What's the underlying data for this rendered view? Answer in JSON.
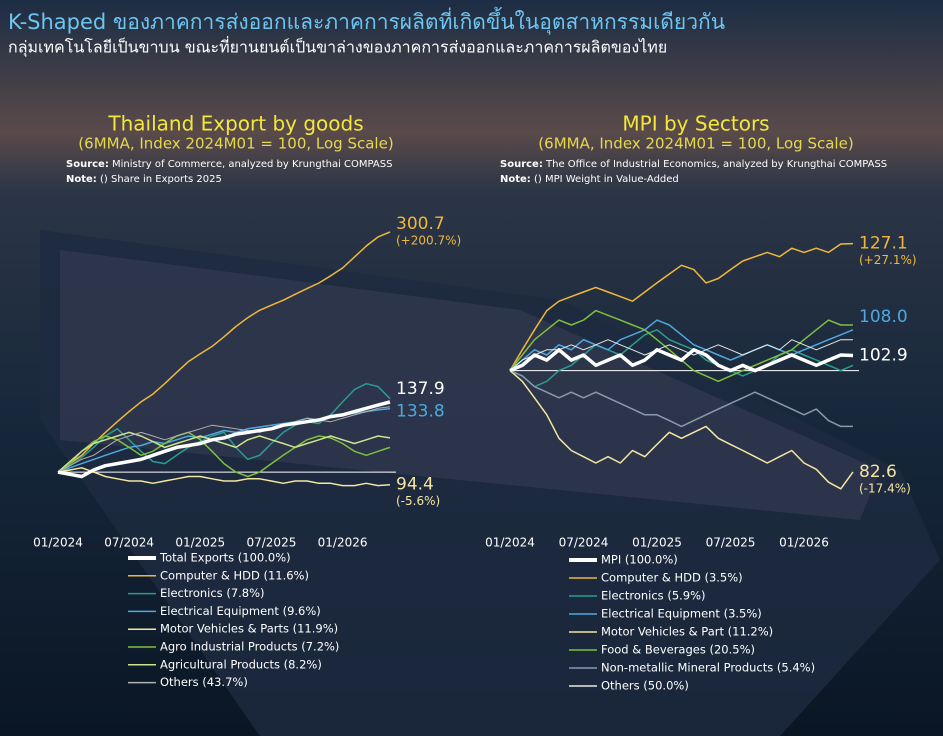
{
  "header": {
    "title": "K-Shaped ของภาคการส่งออกและภาคการผลิตที่เกิดขึ้นในอุตสาหกรรมเดียวกัน",
    "subtitle": "กลุ่มเทคโนโลยีเป็นขาบน ขณะที่ยานยนต์เป็นขาล่างของภาคการส่งออกและภาคการผลิตของไทย"
  },
  "chart_data": [
    {
      "type": "line",
      "title": "Thailand Export by goods",
      "subtitle": "(6MMA, Index 2024M01 = 100, Log Scale)",
      "source_label": "Source:",
      "source": " Ministry of Commerce, analyzed by Krungthai COMPASS",
      "note_label": "Note:",
      "note": " () Share in Exports 2025",
      "log_scale": true,
      "baseline": 100,
      "ylim": [
        88,
        440
      ],
      "categories": [
        "01/2024",
        null,
        null,
        null,
        null,
        null,
        "07/2024",
        null,
        null,
        null,
        null,
        null,
        "01/2025",
        null,
        null,
        null,
        null,
        null,
        "07/2025",
        null,
        null,
        null,
        null,
        null,
        "01/2026",
        null,
        null,
        null,
        null
      ],
      "series": [
        {
          "name": "Total Exports (100.0%)",
          "color": "#ffffff",
          "values": [
            100,
            99,
            98,
            101,
            103,
            104,
            105,
            106,
            108,
            110,
            112,
            113,
            114,
            116,
            117,
            119,
            120,
            121,
            122,
            124,
            125,
            126,
            127,
            129,
            130,
            132,
            134,
            136,
            137.9
          ],
          "end_labels": [
            "137.9"
          ]
        },
        {
          "name": "Computer & HDD (11.6%)",
          "color": "#f0b83a",
          "values": [
            100,
            104,
            108,
            114,
            120,
            126,
            132,
            138,
            143,
            150,
            158,
            166,
            172,
            178,
            186,
            195,
            203,
            210,
            215,
            220,
            226,
            232,
            238,
            246,
            255,
            268,
            282,
            294,
            300.7
          ],
          "end_labels": [
            "300.7",
            "(+200.7%)"
          ]
        },
        {
          "name": "Electronics (7.8%)",
          "color": "#2a9d8f",
          "values": [
            100,
            103,
            107,
            112,
            118,
            122,
            116,
            110,
            105,
            104,
            108,
            112,
            115,
            118,
            120,
            112,
            106,
            108,
            114,
            120,
            124,
            126,
            125,
            130,
            138,
            146,
            150,
            148,
            140
          ]
        },
        {
          "name": "Electrical Equipment (9.6%)",
          "color": "#4ea8de",
          "values": [
            100,
            102,
            104,
            106,
            108,
            110,
            112,
            113,
            115,
            114,
            116,
            118,
            117,
            119,
            121,
            120,
            122,
            123,
            124,
            125,
            126,
            128,
            127,
            129,
            130,
            131,
            132,
            133,
            133.8
          ],
          "end_labels": [
            "133.8"
          ]
        },
        {
          "name": "Motor Vehicles & Parts (11.9%)",
          "color": "#f5e6a0",
          "values": [
            100,
            101,
            102,
            100,
            98,
            97,
            96,
            96,
            95,
            96,
            97,
            98,
            98,
            97,
            96,
            96,
            97,
            97,
            96,
            95,
            96,
            96,
            95,
            95,
            94,
            94,
            95,
            94,
            94.4
          ],
          "end_labels": [
            "94.4",
            "(-5.6%)"
          ]
        },
        {
          "name": "Agro Industrial Products (7.2%)",
          "color": "#7fbf3f",
          "values": [
            100,
            104,
            110,
            115,
            118,
            116,
            112,
            108,
            110,
            114,
            118,
            120,
            116,
            110,
            104,
            100,
            98,
            100,
            104,
            108,
            112,
            116,
            118,
            117,
            114,
            110,
            108,
            110,
            112
          ]
        },
        {
          "name": "Agricultural Products (8.2%)",
          "color": "#cde38f",
          "values": [
            100,
            105,
            110,
            114,
            116,
            118,
            120,
            118,
            115,
            112,
            114,
            116,
            118,
            116,
            114,
            112,
            116,
            118,
            116,
            114,
            112,
            114,
            116,
            118,
            116,
            114,
            116,
            118,
            117
          ]
        },
        {
          "name": "Others (43.7%)",
          "color": "#b0b0b0",
          "values": [
            100,
            103,
            106,
            108,
            112,
            116,
            118,
            120,
            118,
            116,
            118,
            120,
            122,
            124,
            123,
            122,
            121,
            120,
            122,
            124,
            126,
            128,
            127,
            126,
            128,
            130,
            132,
            134,
            135
          ]
        }
      ]
    },
    {
      "type": "line",
      "title": "MPI by Sectors",
      "subtitle": "(6MMA, Index 2024M01 = 100, Log Scale)",
      "source_label": "Source:",
      "source": " The Office of Industrial Economics, analyzed by Krungthai COMPASS",
      "note_label": "Note:",
      "note": " () MPI Weight in Value-Added",
      "log_scale": true,
      "baseline": 100,
      "ylim": [
        75,
        138
      ],
      "categories": [
        "01/2024",
        null,
        null,
        null,
        null,
        null,
        "07/2024",
        null,
        null,
        null,
        null,
        null,
        "01/2025",
        null,
        null,
        null,
        null,
        null,
        "07/2025",
        null,
        null,
        null,
        null,
        null,
        "01/2026",
        null,
        null,
        null,
        null
      ],
      "series": [
        {
          "name": "MPI (100.0%)",
          "color": "#ffffff",
          "values": [
            100,
            101,
            103,
            102,
            104,
            102,
            103,
            101,
            102,
            103,
            101,
            102,
            104,
            103,
            102,
            104,
            103,
            101,
            100,
            101,
            100,
            101,
            102,
            103,
            102,
            101,
            102,
            103,
            102.9
          ],
          "end_labels": [
            "102.9"
          ]
        },
        {
          "name": "Computer & HDD (3.5%)",
          "color": "#f0b83a",
          "values": [
            100,
            104,
            108,
            112,
            114,
            115,
            116,
            117,
            116,
            115,
            114,
            116,
            118,
            120,
            122,
            121,
            118,
            119,
            121,
            123,
            124,
            125,
            124,
            126,
            125,
            126,
            125,
            127,
            127.1
          ],
          "end_labels": [
            "127.1",
            "(+27.1%)"
          ]
        },
        {
          "name": "Electronics (5.9%)",
          "color": "#2a9d8f",
          "values": [
            100,
            99,
            97,
            98,
            100,
            101,
            103,
            105,
            104,
            103,
            105,
            107,
            108,
            106,
            105,
            104,
            102,
            101,
            100,
            99,
            100,
            101,
            103,
            104,
            103,
            102,
            101,
            100,
            101
          ]
        },
        {
          "name": "Electrical Equipment (3.5%)",
          "color": "#4ea8de",
          "values": [
            100,
            102,
            104,
            103,
            105,
            104,
            106,
            105,
            104,
            106,
            107,
            108,
            110,
            109,
            107,
            105,
            104,
            103,
            102,
            103,
            104,
            105,
            104,
            103,
            104,
            105,
            106,
            107,
            108.0
          ],
          "end_labels": [
            "108.0"
          ]
        },
        {
          "name": "Motor Vehicles & Part (11.2%)",
          "color": "#f5e6a0",
          "values": [
            100,
            98,
            95,
            92,
            88,
            86,
            85,
            84,
            85,
            84,
            86,
            85,
            87,
            89,
            88,
            89,
            90,
            88,
            87,
            86,
            85,
            84,
            85,
            86,
            84,
            83,
            81,
            80,
            82.6
          ],
          "end_labels": [
            "82.6",
            "(-17.4%)"
          ]
        },
        {
          "name": "Food & Beverages (20.5%)",
          "color": "#7fbf3f",
          "values": [
            100,
            103,
            106,
            108,
            110,
            109,
            110,
            112,
            111,
            110,
            109,
            108,
            106,
            104,
            102,
            100,
            99,
            98,
            99,
            100,
            101,
            102,
            103,
            104,
            106,
            108,
            110,
            109,
            109
          ]
        },
        {
          "name": "Non-metallic Mineral Products (5.4%)",
          "color": "#8a9aaa",
          "values": [
            100,
            99,
            97,
            96,
            95,
            96,
            95,
            96,
            95,
            94,
            93,
            92,
            92,
            91,
            90,
            91,
            92,
            93,
            94,
            95,
            96,
            95,
            94,
            93,
            92,
            93,
            91,
            90,
            90
          ]
        },
        {
          "name": "Others (50.0%)",
          "color": "#e8e8e8",
          "values": [
            100,
            102,
            103,
            104,
            104,
            105,
            104,
            105,
            106,
            105,
            104,
            103,
            104,
            105,
            104,
            103,
            104,
            105,
            104,
            103,
            104,
            105,
            104,
            106,
            105,
            104,
            105,
            106,
            106
          ]
        }
      ]
    }
  ]
}
